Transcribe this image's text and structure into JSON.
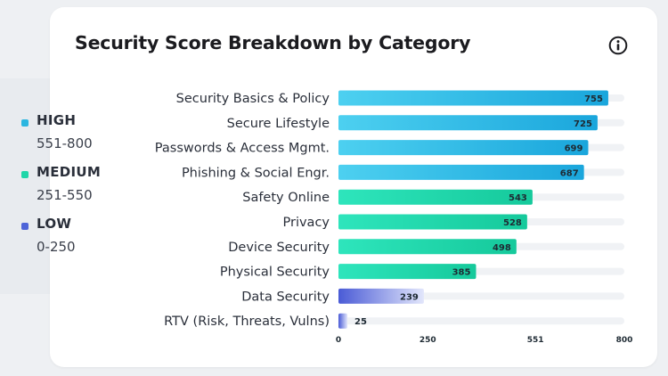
{
  "title": "Security Score Breakdown by Category",
  "icons": {
    "info": "info-icon"
  },
  "legend": [
    {
      "name": "HIGH",
      "range": "551-800",
      "color": "#2bb6e0"
    },
    {
      "name": "MEDIUM",
      "range": "251-550",
      "color": "#1fd6a9"
    },
    {
      "name": "LOW",
      "range": "0-250",
      "color": "#4e64d8"
    }
  ],
  "colors": {
    "high_start": "#4dd0f0",
    "high_end": "#1aa6dc",
    "medium_start": "#2ee5bc",
    "medium_end": "#15c99b",
    "low_start": "#4a5bd6",
    "low_end": "#e2e6fb",
    "track": "#f0f2f5"
  },
  "chart_data": {
    "type": "bar",
    "orientation": "horizontal",
    "title": "Security Score Breakdown by Category",
    "categories": [
      "Security Basics & Policy",
      "Secure Lifestyle",
      "Passwords & Access Mgmt.",
      "Phishing & Social Engr.",
      "Safety Online",
      "Privacy",
      "Device Security",
      "Physical Security",
      "Data Security",
      "RTV (Risk, Threats, Vulns)"
    ],
    "values": [
      755,
      725,
      699,
      687,
      543,
      528,
      498,
      385,
      239,
      25
    ],
    "levels": [
      "HIGH",
      "HIGH",
      "HIGH",
      "HIGH",
      "MEDIUM",
      "MEDIUM",
      "MEDIUM",
      "MEDIUM",
      "LOW",
      "LOW"
    ],
    "xticks": [
      0,
      250,
      551,
      800
    ],
    "xlim": [
      0,
      800
    ],
    "grid": false,
    "legend_position": "left"
  }
}
